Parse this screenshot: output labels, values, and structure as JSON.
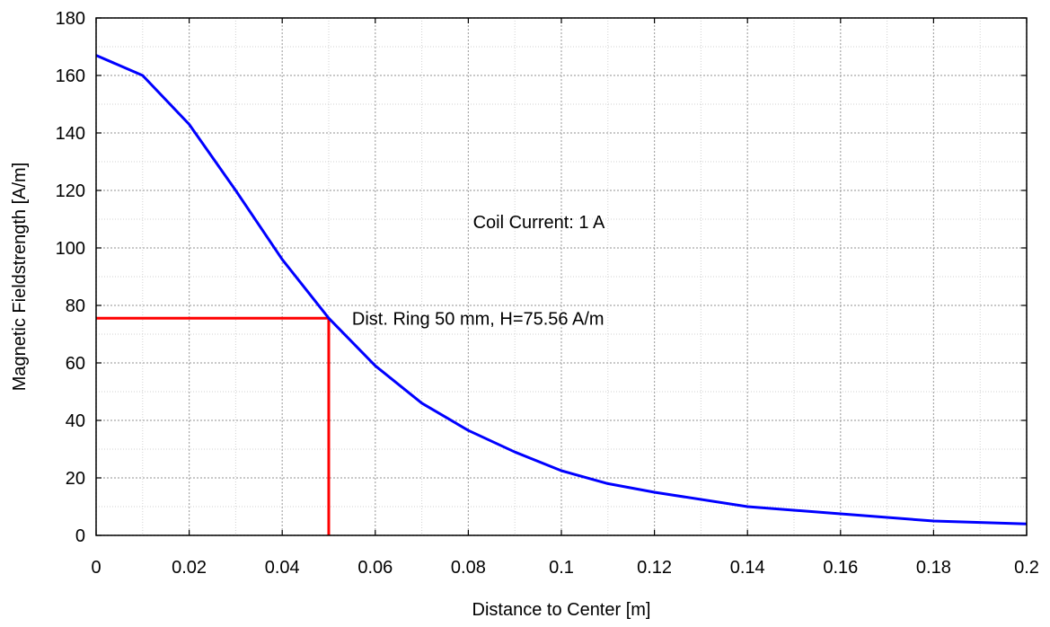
{
  "chart_data": {
    "type": "line",
    "title": "",
    "xlabel": "Distance to Center [m]",
    "ylabel": "Magnetic Fieldstrength [A/m]",
    "xlim": [
      0,
      0.2
    ],
    "ylim": [
      0,
      180
    ],
    "xticks": [
      0,
      0.02,
      0.04,
      0.06,
      0.08,
      0.1,
      0.12,
      0.14,
      0.16,
      0.18,
      0.2
    ],
    "xtick_labels": [
      "0",
      "0.02",
      "0.04",
      "0.06",
      "0.08",
      "0.1",
      "0.12",
      "0.14",
      "0.16",
      "0.18",
      "0.2"
    ],
    "yticks": [
      0,
      20,
      40,
      60,
      80,
      100,
      120,
      140,
      160,
      180
    ],
    "ytick_labels": [
      "0",
      "20",
      "40",
      "60",
      "80",
      "100",
      "120",
      "140",
      "160",
      "180"
    ],
    "grid": true,
    "minor_grid": true,
    "series": [
      {
        "color": "#0000ff",
        "x": [
          0,
          0.01,
          0.02,
          0.03,
          0.04,
          0.05,
          0.06,
          0.07,
          0.08,
          0.09,
          0.1,
          0.11,
          0.12,
          0.14,
          0.16,
          0.18,
          0.2
        ],
        "y": [
          167,
          160,
          143,
          120,
          96,
          75.56,
          59,
          46,
          36.5,
          29,
          22.5,
          18,
          15,
          10,
          7.5,
          5,
          4
        ]
      }
    ],
    "markers": [
      {
        "color": "#ff0000",
        "x": 0.05,
        "y": 75.56
      }
    ],
    "annotations": [
      {
        "text": "Coil Current: 1 A",
        "x": 0.081,
        "y": 109
      },
      {
        "text": "Dist. Ring 50 mm, H=75.56 A/m",
        "x": 0.055,
        "y": 75.5
      }
    ]
  }
}
